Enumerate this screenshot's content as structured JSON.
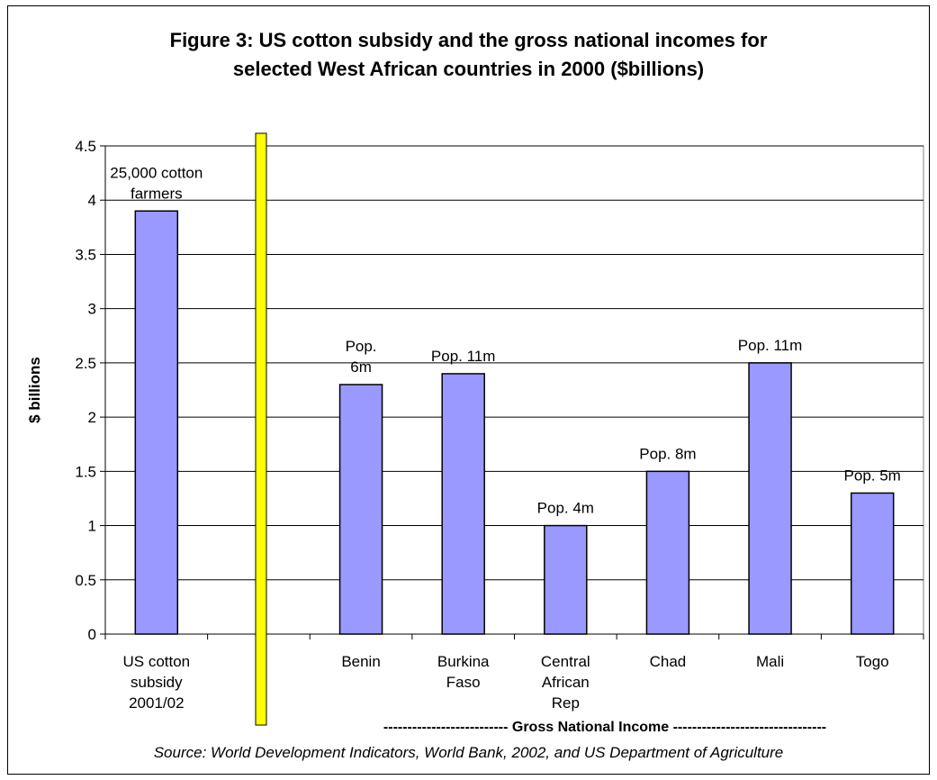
{
  "title_line1": "Figure 3: US cotton subsidy and the gross national incomes for",
  "title_line2": "selected West African countries  in 2000 ($billions)",
  "source": "Source: World Development Indicators, World Bank, 2002, and US Department of Agriculture",
  "colors": {
    "bar": "#9999ff",
    "divider": "#ffff00",
    "plot_bg": "#ffffff"
  },
  "chart_data": {
    "type": "bar",
    "title": "Figure 3: US cotton subsidy and the gross national incomes for selected West African countries  in 2000 ($billions)",
    "ylabel": "$ billions",
    "xlabel": "-------------------------- Gross National Income --------------------------------",
    "ylim": [
      0,
      4.5
    ],
    "yticks": [
      "0",
      "0.5",
      "1",
      "1.5",
      "2",
      "2.5",
      "3",
      "3.5",
      "4",
      "4.5"
    ],
    "grid": true,
    "categories": [
      [
        "US cotton",
        "subsidy",
        "2001/02"
      ],
      [],
      [
        "Benin"
      ],
      [
        "Burkina",
        "Faso"
      ],
      [
        "Central",
        "African",
        "Rep"
      ],
      [
        "Chad"
      ],
      [
        "Mali"
      ],
      [
        "Togo"
      ]
    ],
    "values": [
      3.9,
      null,
      2.3,
      2.4,
      1.0,
      1.5,
      2.5,
      1.3
    ],
    "annotations": [
      [
        "25,000 cotton",
        "farmers"
      ],
      [],
      [
        "Pop.",
        "6m"
      ],
      [
        "Pop. 11m"
      ],
      [
        "Pop. 4m"
      ],
      [
        "Pop. 8m"
      ],
      [
        "Pop. 11m"
      ],
      [
        "Pop. 5m"
      ]
    ]
  }
}
